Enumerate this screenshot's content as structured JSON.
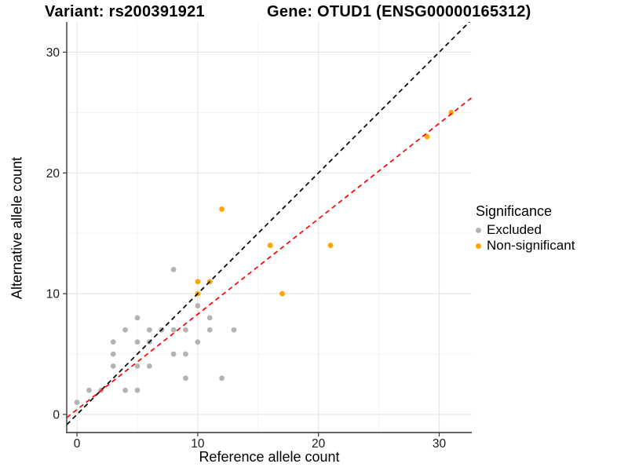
{
  "header": {
    "variant_title": "Variant: rs200391921",
    "gene_title": "Gene: OTUD1 (ENSG00000165312)"
  },
  "chart_data": {
    "type": "scatter",
    "xlabel": "Reference allele count",
    "ylabel": "Alternative allele count",
    "xlim": [
      -0.85,
      32.7
    ],
    "ylim": [
      -1.5,
      32.5
    ],
    "x_major_ticks": [
      0,
      10,
      20,
      30
    ],
    "y_major_ticks": [
      0,
      10,
      20,
      30
    ],
    "x_minor_ticks": [
      5,
      15,
      25
    ],
    "y_minor_ticks": [
      5,
      15,
      25
    ],
    "grid": "major-and-minor",
    "legend": {
      "title": "Significance",
      "position": "right",
      "items": [
        {
          "label": "Excluded",
          "color": "#b3b3b3"
        },
        {
          "label": "Non-significant",
          "color": "#ffa500"
        }
      ]
    },
    "series": [
      {
        "name": "Excluded",
        "color": "#b3b3b3",
        "points": [
          [
            0,
            1
          ],
          [
            1,
            2
          ],
          [
            2,
            2
          ],
          [
            4,
            2
          ],
          [
            5,
            2
          ],
          [
            9,
            3
          ],
          [
            12,
            3
          ],
          [
            3,
            4
          ],
          [
            5,
            4
          ],
          [
            6,
            4
          ],
          [
            3,
            5
          ],
          [
            8,
            5
          ],
          [
            9,
            5
          ],
          [
            3,
            6
          ],
          [
            5,
            6
          ],
          [
            6,
            6
          ],
          [
            10,
            6
          ],
          [
            4,
            7
          ],
          [
            6,
            7
          ],
          [
            7,
            7
          ],
          [
            8,
            7
          ],
          [
            9,
            7
          ],
          [
            11,
            7
          ],
          [
            13,
            7
          ],
          [
            5,
            8
          ],
          [
            11,
            8
          ],
          [
            10,
            9
          ],
          [
            8,
            12
          ]
        ]
      },
      {
        "name": "Non-significant",
        "color": "#ffa500",
        "points": [
          [
            10,
            10
          ],
          [
            17,
            10
          ],
          [
            10,
            11
          ],
          [
            11,
            11
          ],
          [
            16,
            14
          ],
          [
            21,
            14
          ],
          [
            12,
            17
          ],
          [
            29,
            23
          ],
          [
            31,
            25
          ]
        ]
      }
    ],
    "reference_lines": [
      {
        "name": "identity-line",
        "color": "#000000",
        "slope": 1,
        "intercept": 0,
        "dashed": true
      },
      {
        "name": "fit-line",
        "color": "#ff0000",
        "slope": 0.79,
        "intercept": 0.4,
        "dashed": true
      }
    ]
  }
}
